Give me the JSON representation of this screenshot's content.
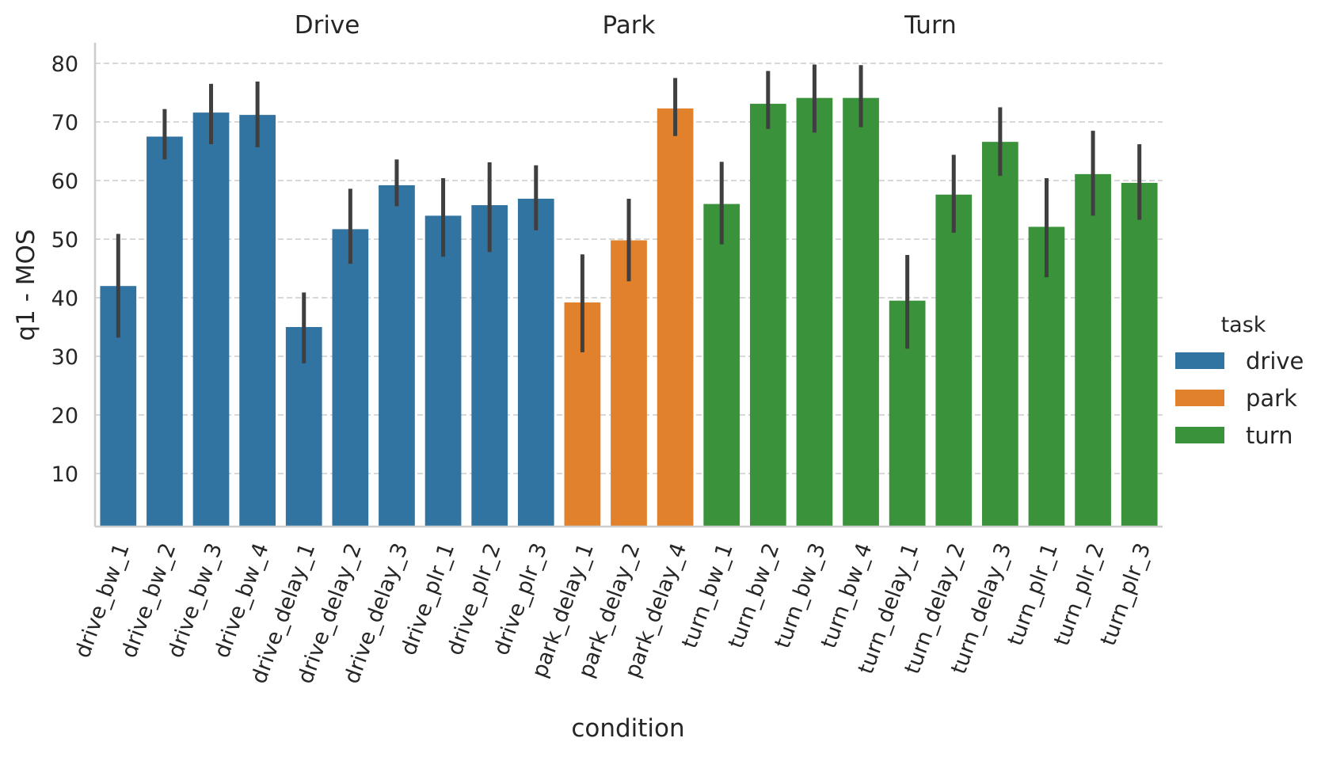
{
  "chart_data": {
    "type": "bar",
    "xlabel": "condition",
    "ylabel": "q1 - MOS",
    "ylim": [
      0.5,
      83.5
    ],
    "yticks": [
      10,
      20,
      30,
      40,
      50,
      60,
      70,
      80
    ],
    "ytick_labels": [
      "10",
      "20",
      "30",
      "40",
      "50",
      "60",
      "70",
      "80"
    ],
    "grid": "horizontal dashed",
    "group_titles": [
      "Drive",
      "Park",
      "Turn"
    ],
    "legend": {
      "title": "task",
      "position": "right",
      "entries": [
        {
          "label": "drive",
          "color": "#3274a1"
        },
        {
          "label": "park",
          "color": "#e1812c"
        },
        {
          "label": "turn",
          "color": "#3a923a"
        }
      ]
    },
    "categories": [
      "drive_bw_1",
      "drive_bw_2",
      "drive_bw_3",
      "drive_bw_4",
      "drive_delay_1",
      "drive_delay_2",
      "drive_delay_3",
      "drive_plr_1",
      "drive_plr_2",
      "drive_plr_3",
      "park_delay_1",
      "park_delay_2",
      "park_delay_4",
      "turn_bw_1",
      "turn_bw_2",
      "turn_bw_3",
      "turn_bw_4",
      "turn_delay_1",
      "turn_delay_2",
      "turn_delay_3",
      "turn_plr_1",
      "turn_plr_2",
      "turn_plr_3"
    ],
    "task": [
      "drive",
      "drive",
      "drive",
      "drive",
      "drive",
      "drive",
      "drive",
      "drive",
      "drive",
      "drive",
      "park",
      "park",
      "park",
      "turn",
      "turn",
      "turn",
      "turn",
      "turn",
      "turn",
      "turn",
      "turn",
      "turn",
      "turn"
    ],
    "values": [
      42.0,
      67.5,
      71.6,
      71.2,
      35.0,
      51.7,
      59.2,
      54.0,
      55.8,
      56.9,
      39.2,
      49.8,
      72.3,
      56.0,
      73.1,
      74.1,
      74.1,
      39.5,
      57.6,
      66.6,
      52.1,
      61.1,
      59.6
    ],
    "ci_low": [
      33.2,
      63.6,
      66.2,
      65.7,
      28.8,
      45.8,
      55.6,
      47.0,
      47.8,
      51.5,
      30.7,
      42.8,
      67.6,
      49.1,
      68.8,
      68.2,
      69.1,
      31.3,
      51.1,
      60.8,
      43.5,
      54.0,
      53.3
    ],
    "ci_high": [
      50.9,
      72.2,
      76.5,
      76.9,
      40.9,
      58.6,
      63.6,
      60.4,
      63.1,
      62.6,
      47.4,
      56.9,
      77.5,
      63.2,
      78.7,
      79.8,
      79.7,
      47.3,
      64.4,
      72.5,
      60.4,
      68.5,
      66.2
    ]
  }
}
